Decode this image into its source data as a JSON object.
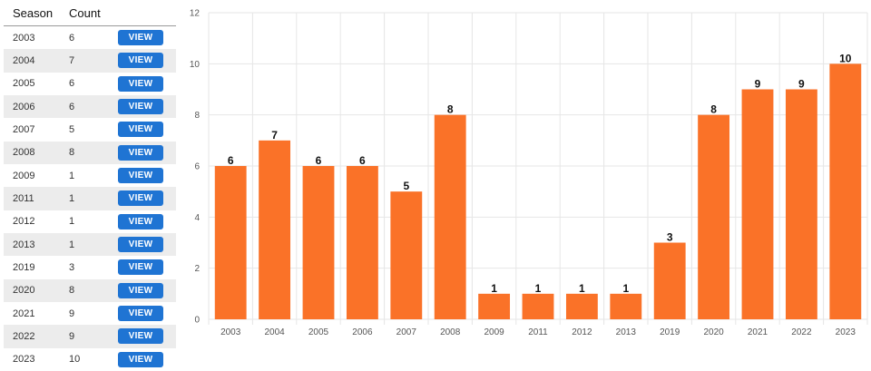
{
  "table": {
    "headers": {
      "season": "Season",
      "count": "Count"
    },
    "view_label": "VIEW",
    "rows": [
      {
        "season": "2003",
        "count": "6"
      },
      {
        "season": "2004",
        "count": "7"
      },
      {
        "season": "2005",
        "count": "6"
      },
      {
        "season": "2006",
        "count": "6"
      },
      {
        "season": "2007",
        "count": "5"
      },
      {
        "season": "2008",
        "count": "8"
      },
      {
        "season": "2009",
        "count": "1"
      },
      {
        "season": "2011",
        "count": "1"
      },
      {
        "season": "2012",
        "count": "1"
      },
      {
        "season": "2013",
        "count": "1"
      },
      {
        "season": "2019",
        "count": "3"
      },
      {
        "season": "2020",
        "count": "8"
      },
      {
        "season": "2021",
        "count": "9"
      },
      {
        "season": "2022",
        "count": "9"
      },
      {
        "season": "2023",
        "count": "10"
      }
    ]
  },
  "colors": {
    "bar": "#fa7228",
    "button": "#1f74d3",
    "grid": "#e6e6e6"
  },
  "chart_data": {
    "type": "bar",
    "categories": [
      "2003",
      "2004",
      "2005",
      "2006",
      "2007",
      "2008",
      "2009",
      "2011",
      "2012",
      "2013",
      "2019",
      "2020",
      "2021",
      "2022",
      "2023"
    ],
    "values": [
      6,
      7,
      6,
      6,
      5,
      8,
      1,
      1,
      1,
      1,
      3,
      8,
      9,
      9,
      10
    ],
    "ylim": [
      0,
      12
    ],
    "yticks": [
      0,
      2,
      4,
      6,
      8,
      10,
      12
    ],
    "grid": true,
    "data_labels": true
  }
}
